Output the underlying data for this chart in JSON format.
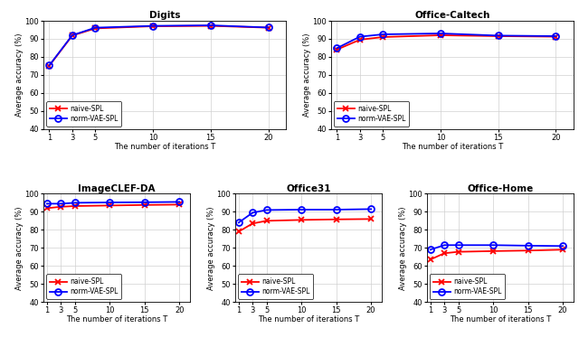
{
  "x_ticks": [
    1,
    3,
    5,
    10,
    15,
    20
  ],
  "digits": {
    "title": "Digits",
    "naive_spl": [
      75.0,
      91.8,
      95.8,
      97.0,
      97.2,
      96.2
    ],
    "norm_vae_spl": [
      75.2,
      92.0,
      96.2,
      97.2,
      97.5,
      96.3
    ],
    "ylim": [
      40,
      100
    ],
    "yticks": [
      40,
      50,
      60,
      70,
      80,
      90,
      100
    ]
  },
  "office_caltech": {
    "title": "Office-Caltech",
    "naive_spl": [
      84.0,
      89.5,
      91.0,
      92.0,
      91.5,
      91.2
    ],
    "norm_vae_spl": [
      84.8,
      91.2,
      92.5,
      93.0,
      91.8,
      91.5
    ],
    "ylim": [
      40,
      100
    ],
    "yticks": [
      40,
      50,
      60,
      70,
      80,
      90,
      100
    ]
  },
  "imageclef_da": {
    "title": "ImageCLEF-DA",
    "naive_spl": [
      92.0,
      92.8,
      93.2,
      93.5,
      93.8,
      94.0
    ],
    "norm_vae_spl": [
      94.5,
      94.5,
      95.0,
      95.2,
      95.3,
      95.5
    ],
    "ylim": [
      40,
      100
    ],
    "yticks": [
      40,
      50,
      60,
      70,
      80,
      90,
      100
    ]
  },
  "office31": {
    "title": "Office31",
    "naive_spl": [
      79.0,
      83.5,
      85.0,
      85.5,
      85.8,
      86.0
    ],
    "norm_vae_spl": [
      84.0,
      89.5,
      91.0,
      91.2,
      91.2,
      91.5
    ],
    "ylim": [
      40,
      100
    ],
    "yticks": [
      40,
      50,
      60,
      70,
      80,
      90,
      100
    ]
  },
  "office_home": {
    "title": "Office-Home",
    "naive_spl": [
      63.5,
      67.0,
      67.8,
      68.2,
      68.5,
      69.0
    ],
    "norm_vae_spl": [
      69.0,
      71.5,
      71.5,
      71.5,
      71.2,
      71.0
    ],
    "ylim": [
      40,
      100
    ],
    "yticks": [
      40,
      50,
      60,
      70,
      80,
      90,
      100
    ]
  },
  "naive_color": "#ff0000",
  "norm_vae_color": "#0000ff",
  "ylabel": "Average accuracy (%)",
  "xlabel": "The number of iterations T",
  "legend_labels": [
    "naive-SPL",
    "norm-VAE-SPL"
  ]
}
